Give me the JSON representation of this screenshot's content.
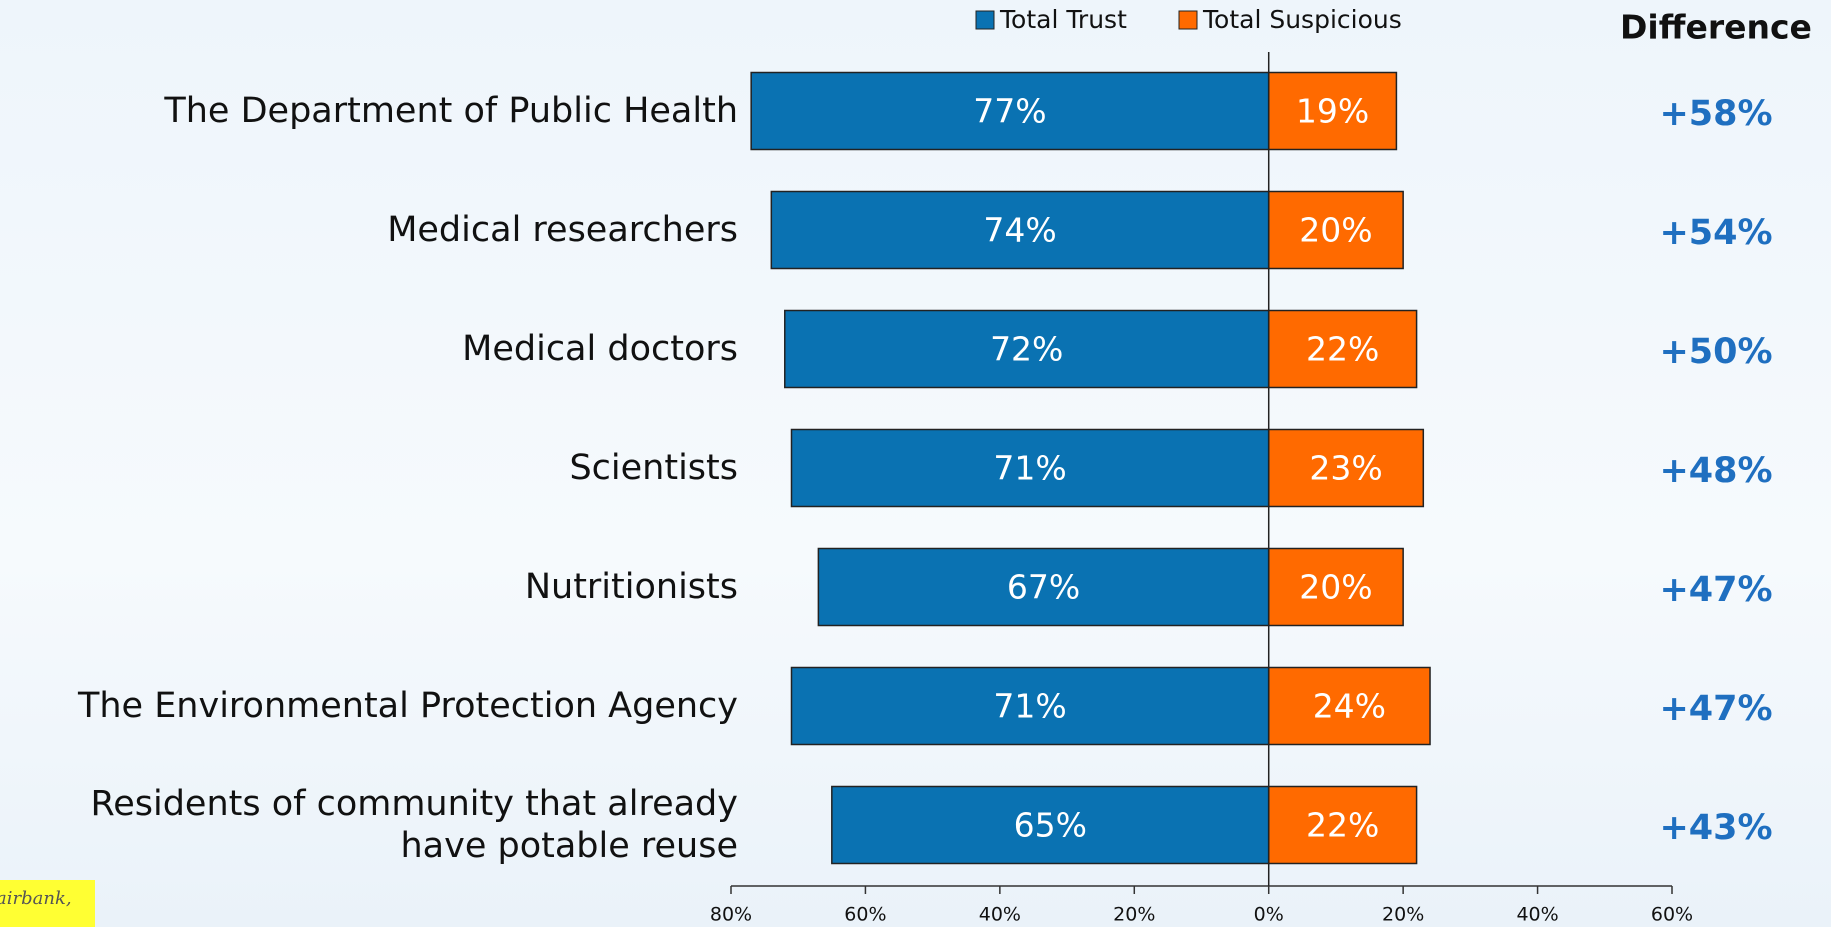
{
  "chart_data": {
    "type": "diverging-bar",
    "categories": [
      "The Department of Public Health",
      "Medical researchers",
      "Medical doctors",
      "Scientists",
      "Nutritionists",
      "The Environmental Protection Agency",
      "Residents of community that already have potable reuse"
    ],
    "series": [
      {
        "name": "Total Trust",
        "color": "#0a72b2",
        "values": [
          -77,
          -74,
          -72,
          -71,
          -67,
          -71,
          -65
        ],
        "value_labels": [
          "77%",
          "74%",
          "72%",
          "71%",
          "67%",
          "71%",
          "65%"
        ]
      },
      {
        "name": "Total Suspicious",
        "color": "#ff6a00",
        "values": [
          19,
          20,
          22,
          23,
          20,
          24,
          22
        ],
        "value_labels": [
          "19%",
          "20%",
          "22%",
          "23%",
          "20%",
          "24%",
          "22%"
        ]
      }
    ],
    "xlim": [
      -80,
      60
    ],
    "xticks": [
      {
        "value": -80,
        "label": "80%"
      },
      {
        "value": -60,
        "label": "60%"
      },
      {
        "value": -40,
        "label": "40%"
      },
      {
        "value": -20,
        "label": "20%"
      },
      {
        "value": 0,
        "label": "0%"
      },
      {
        "value": 20,
        "label": "20%"
      },
      {
        "value": 40,
        "label": "40%"
      },
      {
        "value": 60,
        "label": "60%"
      }
    ],
    "difference": {
      "title": "Difference",
      "color": "#1f6fc0",
      "values": [
        58,
        54,
        50,
        48,
        47,
        47,
        43
      ],
      "value_labels": [
        "+58%",
        "+54%",
        "+50%",
        "+48%",
        "+47%",
        "+47%",
        "+43%"
      ]
    },
    "source_note": "airbank,"
  }
}
